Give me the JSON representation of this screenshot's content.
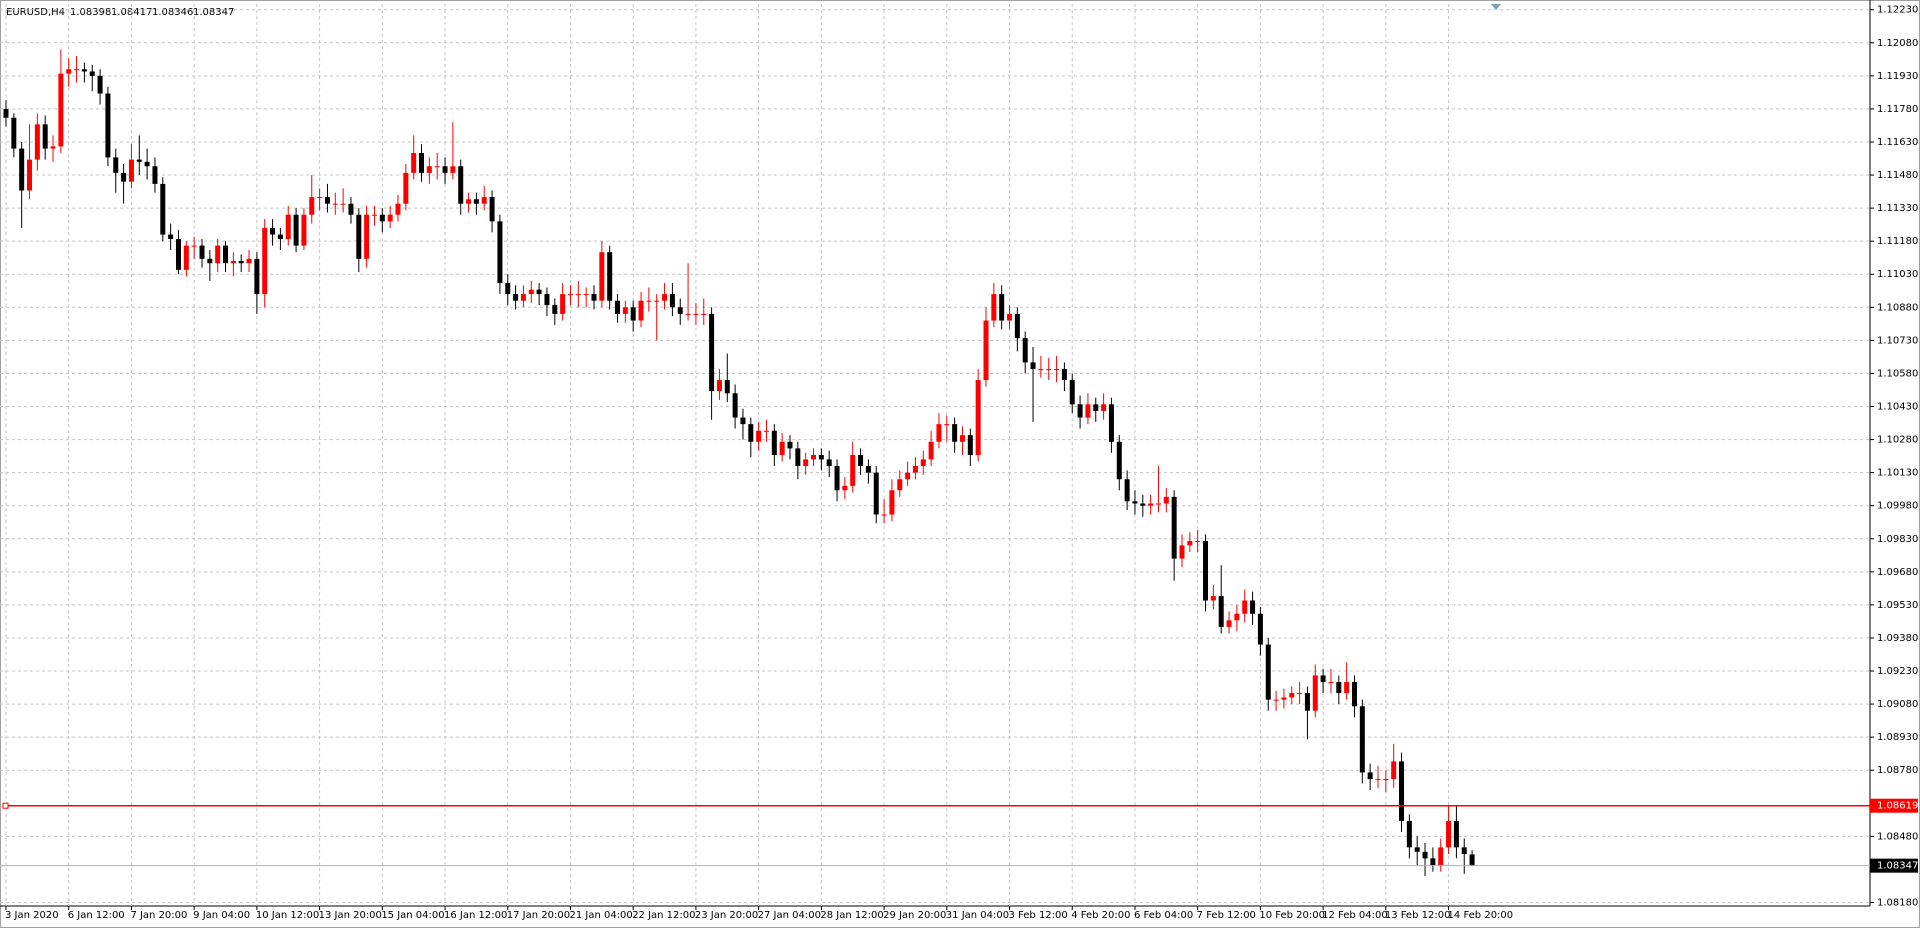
{
  "chart_data": {
    "type": "candlestick",
    "symbol": "EURUSD,H4",
    "bull_color": "#ff0000",
    "bear_color": "#000000",
    "grid": true,
    "ylim": [
      1.08164,
      1.12256
    ],
    "yticks": [
      {
        "value": 1.1223,
        "label": "1.12230"
      },
      {
        "value": 1.1208,
        "label": "1.12080"
      },
      {
        "value": 1.1193,
        "label": "1.11930"
      },
      {
        "value": 1.1178,
        "label": "1.11780"
      },
      {
        "value": 1.1163,
        "label": "1.11630"
      },
      {
        "value": 1.1148,
        "label": "1.11480"
      },
      {
        "value": 1.1133,
        "label": "1.11330"
      },
      {
        "value": 1.1118,
        "label": "1.11180"
      },
      {
        "value": 1.1103,
        "label": "1.11030"
      },
      {
        "value": 1.1088,
        "label": "1.10880"
      },
      {
        "value": 1.1073,
        "label": "1.10730"
      },
      {
        "value": 1.1058,
        "label": "1.10580"
      },
      {
        "value": 1.1043,
        "label": "1.10430"
      },
      {
        "value": 1.1028,
        "label": "1.10280"
      },
      {
        "value": 1.1013,
        "label": "1.10130"
      },
      {
        "value": 1.0998,
        "label": "1.09980"
      },
      {
        "value": 1.0983,
        "label": "1.09830"
      },
      {
        "value": 1.0968,
        "label": "1.09680"
      },
      {
        "value": 1.0953,
        "label": "1.09530"
      },
      {
        "value": 1.0938,
        "label": "1.09380"
      },
      {
        "value": 1.0923,
        "label": "1.09230"
      },
      {
        "value": 1.0908,
        "label": "1.09080"
      },
      {
        "value": 1.0893,
        "label": "1.08930"
      },
      {
        "value": 1.0878,
        "label": "1.08780"
      },
      {
        "value": 1.0848,
        "label": "1.08480"
      },
      {
        "value": 1.0818,
        "label": "1.08180"
      }
    ],
    "hline": {
      "value": 1.08619,
      "color": "#ff0000"
    },
    "categories": [
      "3 Jan 2020",
      null,
      null,
      null,
      null,
      null,
      null,
      null,
      "6 Jan 12:00",
      null,
      null,
      null,
      null,
      null,
      null,
      null,
      "7 Jan 20:00",
      null,
      null,
      null,
      null,
      null,
      null,
      null,
      "9 Jan 04:00",
      null,
      null,
      null,
      null,
      null,
      null,
      null,
      "10 Jan 12:00",
      null,
      null,
      null,
      null,
      null,
      null,
      null,
      "13 Jan 20:00",
      null,
      null,
      null,
      null,
      null,
      null,
      null,
      "15 Jan 04:00",
      null,
      null,
      null,
      null,
      null,
      null,
      null,
      "16 Jan 12:00",
      null,
      null,
      null,
      null,
      null,
      null,
      null,
      "17 Jan 20:00",
      null,
      null,
      null,
      null,
      null,
      null,
      null,
      "21 Jan 04:00",
      null,
      null,
      null,
      null,
      null,
      null,
      null,
      "22 Jan 12:00",
      null,
      null,
      null,
      null,
      null,
      null,
      null,
      "23 Jan 20:00",
      null,
      null,
      null,
      null,
      null,
      null,
      null,
      "27 Jan 04:00",
      null,
      null,
      null,
      null,
      null,
      null,
      null,
      "28 Jan 12:00",
      null,
      null,
      null,
      null,
      null,
      null,
      null,
      "29 Jan 20:00",
      null,
      null,
      null,
      null,
      null,
      null,
      null,
      "31 Jan 04:00",
      null,
      null,
      null,
      null,
      null,
      null,
      null,
      "3 Feb 12:00",
      null,
      null,
      null,
      null,
      null,
      null,
      null,
      "4 Feb 20:00",
      null,
      null,
      null,
      null,
      null,
      null,
      null,
      "6 Feb 04:00",
      null,
      null,
      null,
      null,
      null,
      null,
      null,
      "7 Feb 12:00",
      null,
      null,
      null,
      null,
      null,
      null,
      null,
      "10 Feb 20:00",
      null,
      null,
      null,
      null,
      null,
      null,
      null,
      "12 Feb 04:00",
      null,
      null,
      null,
      null,
      null,
      null,
      null,
      "13 Feb 12:00",
      null,
      null,
      null,
      null,
      null,
      null,
      null,
      "14 Feb 20:00",
      null,
      null,
      null
    ],
    "ohlc": [
      [
        1.1178,
        1.1182,
        1.117,
        1.1174
      ],
      [
        1.1174,
        1.1176,
        1.1156,
        1.116
      ],
      [
        1.116,
        1.1163,
        1.1124,
        1.1141
      ],
      [
        1.1141,
        1.1171,
        1.1137,
        1.1155
      ],
      [
        1.1155,
        1.1176,
        1.115,
        1.1171
      ],
      [
        1.1171,
        1.1175,
        1.1155,
        1.116
      ],
      [
        1.116,
        1.1166,
        1.1154,
        1.1161
      ],
      [
        1.1161,
        1.1205,
        1.1158,
        1.1194
      ],
      [
        1.1194,
        1.1201,
        1.1188,
        1.1196
      ],
      [
        1.1196,
        1.1202,
        1.119,
        1.1196
      ],
      [
        1.1196,
        1.1199,
        1.119,
        1.1195
      ],
      [
        1.1195,
        1.1198,
        1.1186,
        1.1193
      ],
      [
        1.1193,
        1.1196,
        1.118,
        1.1185
      ],
      [
        1.1185,
        1.1188,
        1.1152,
        1.1156
      ],
      [
        1.1156,
        1.116,
        1.114,
        1.1149
      ],
      [
        1.1149,
        1.1153,
        1.1135,
        1.1145
      ],
      [
        1.1145,
        1.1162,
        1.1142,
        1.1155
      ],
      [
        1.1155,
        1.1166,
        1.1148,
        1.1154
      ],
      [
        1.1154,
        1.116,
        1.1146,
        1.1152
      ],
      [
        1.1152,
        1.1156,
        1.114,
        1.1144
      ],
      [
        1.1144,
        1.1147,
        1.1118,
        1.1121
      ],
      [
        1.1121,
        1.1126,
        1.1114,
        1.1119
      ],
      [
        1.1119,
        1.1123,
        1.1103,
        1.1105
      ],
      [
        1.1105,
        1.1118,
        1.1102,
        1.1116
      ],
      [
        1.1116,
        1.112,
        1.111,
        1.1116
      ],
      [
        1.1116,
        1.1119,
        1.1106,
        1.111
      ],
      [
        1.111,
        1.1114,
        1.11,
        1.1108
      ],
      [
        1.1108,
        1.1119,
        1.1104,
        1.1116
      ],
      [
        1.1116,
        1.1118,
        1.1104,
        1.1108
      ],
      [
        1.1108,
        1.1113,
        1.1102,
        1.1109
      ],
      [
        1.1109,
        1.1112,
        1.1104,
        1.1108
      ],
      [
        1.1108,
        1.1114,
        1.1104,
        1.111
      ],
      [
        1.111,
        1.1113,
        1.1085,
        1.1094
      ],
      [
        1.1094,
        1.1128,
        1.1088,
        1.1124
      ],
      [
        1.1124,
        1.1128,
        1.1116,
        1.1121
      ],
      [
        1.1121,
        1.1124,
        1.1114,
        1.1119
      ],
      [
        1.1119,
        1.1134,
        1.1116,
        1.113
      ],
      [
        1.113,
        1.1133,
        1.1113,
        1.1116
      ],
      [
        1.1116,
        1.1133,
        1.1114,
        1.113
      ],
      [
        1.113,
        1.1148,
        1.1126,
        1.1138
      ],
      [
        1.1138,
        1.1142,
        1.1132,
        1.1138
      ],
      [
        1.1138,
        1.1144,
        1.1131,
        1.1135
      ],
      [
        1.1135,
        1.114,
        1.113,
        1.1135
      ],
      [
        1.1135,
        1.1142,
        1.1131,
        1.1135
      ],
      [
        1.1135,
        1.1138,
        1.1126,
        1.113
      ],
      [
        1.113,
        1.1133,
        1.1104,
        1.111
      ],
      [
        1.111,
        1.1134,
        1.1106,
        1.113
      ],
      [
        1.113,
        1.1134,
        1.1125,
        1.113
      ],
      [
        1.113,
        1.1133,
        1.1122,
        1.1127
      ],
      [
        1.1127,
        1.1134,
        1.1124,
        1.113
      ],
      [
        1.113,
        1.1139,
        1.1127,
        1.1135
      ],
      [
        1.1135,
        1.1153,
        1.1132,
        1.1149
      ],
      [
        1.1149,
        1.1166,
        1.1146,
        1.1158
      ],
      [
        1.1158,
        1.1162,
        1.1145,
        1.1149
      ],
      [
        1.1149,
        1.1156,
        1.1144,
        1.1152
      ],
      [
        1.1152,
        1.1158,
        1.1146,
        1.1152
      ],
      [
        1.1152,
        1.1156,
        1.1144,
        1.1149
      ],
      [
        1.1149,
        1.1172,
        1.1146,
        1.1152
      ],
      [
        1.1152,
        1.1155,
        1.113,
        1.1135
      ],
      [
        1.1135,
        1.114,
        1.1131,
        1.1137
      ],
      [
        1.1137,
        1.114,
        1.113,
        1.1135
      ],
      [
        1.1135,
        1.1143,
        1.1132,
        1.1138
      ],
      [
        1.1138,
        1.1141,
        1.1122,
        1.1127
      ],
      [
        1.1127,
        1.113,
        1.1094,
        1.1099
      ],
      [
        1.1099,
        1.1103,
        1.1089,
        1.1094
      ],
      [
        1.1094,
        1.1098,
        1.1087,
        1.1091
      ],
      [
        1.1091,
        1.1098,
        1.1088,
        1.1094
      ],
      [
        1.1094,
        1.11,
        1.109,
        1.1096
      ],
      [
        1.1096,
        1.1099,
        1.1089,
        1.1094
      ],
      [
        1.1094,
        1.1097,
        1.1084,
        1.1089
      ],
      [
        1.1089,
        1.1092,
        1.108,
        1.1085
      ],
      [
        1.1085,
        1.1099,
        1.1082,
        1.1094
      ],
      [
        1.1094,
        1.1098,
        1.1089,
        1.1094
      ],
      [
        1.1094,
        1.11,
        1.1088,
        1.1094
      ],
      [
        1.1094,
        1.1097,
        1.1088,
        1.1094
      ],
      [
        1.1094,
        1.1098,
        1.1087,
        1.1091
      ],
      [
        1.1091,
        1.1118,
        1.1088,
        1.1113
      ],
      [
        1.1113,
        1.1116,
        1.1087,
        1.1091
      ],
      [
        1.1091,
        1.1094,
        1.1081,
        1.1085
      ],
      [
        1.1085,
        1.1091,
        1.1081,
        1.1088
      ],
      [
        1.1088,
        1.1091,
        1.1077,
        1.1082
      ],
      [
        1.1082,
        1.1095,
        1.1079,
        1.1091
      ],
      [
        1.1091,
        1.1097,
        1.1086,
        1.1091
      ],
      [
        1.1091,
        1.1094,
        1.1073,
        1.1091
      ],
      [
        1.1091,
        1.1099,
        1.1087,
        1.1094
      ],
      [
        1.1094,
        1.1099,
        1.1084,
        1.1088
      ],
      [
        1.1088,
        1.1092,
        1.108,
        1.1085
      ],
      [
        1.1085,
        1.1108,
        1.1082,
        1.1085
      ],
      [
        1.1085,
        1.109,
        1.108,
        1.1085
      ],
      [
        1.1085,
        1.1092,
        1.108,
        1.1085
      ],
      [
        1.1085,
        1.1088,
        1.1037,
        1.105
      ],
      [
        1.105,
        1.106,
        1.1046,
        1.1055
      ],
      [
        1.1055,
        1.1067,
        1.1045,
        1.1049
      ],
      [
        1.1049,
        1.1053,
        1.1033,
        1.1038
      ],
      [
        1.1038,
        1.1042,
        1.1028,
        1.1035
      ],
      [
        1.1035,
        1.1038,
        1.102,
        1.1027
      ],
      [
        1.1027,
        1.1036,
        1.1023,
        1.1032
      ],
      [
        1.1032,
        1.1037,
        1.1027,
        1.1032
      ],
      [
        1.1032,
        1.1035,
        1.1016,
        1.1021
      ],
      [
        1.1021,
        1.1031,
        1.1018,
        1.1027
      ],
      [
        1.1027,
        1.103,
        1.1019,
        1.1024
      ],
      [
        1.1024,
        1.1027,
        1.101,
        1.1016
      ],
      [
        1.1016,
        1.1022,
        1.1012,
        1.1019
      ],
      [
        1.1019,
        1.1024,
        1.1016,
        1.1021
      ],
      [
        1.1021,
        1.1024,
        1.1014,
        1.1019
      ],
      [
        1.1019,
        1.1023,
        1.1011,
        1.1016
      ],
      [
        1.1016,
        1.1019,
        1.1,
        1.1005
      ],
      [
        1.1005,
        1.1011,
        1.1001,
        1.1007
      ],
      [
        1.1007,
        1.1027,
        1.1004,
        1.1021
      ],
      [
        1.1021,
        1.1024,
        1.1012,
        1.1016
      ],
      [
        1.1016,
        1.1019,
        1.1008,
        1.1013
      ],
      [
        1.1013,
        1.1016,
        1.099,
        1.0994
      ],
      [
        1.0994,
        1.1001,
        1.099,
        1.0994
      ],
      [
        1.0994,
        1.101,
        1.0991,
        1.1005
      ],
      [
        1.1005,
        1.1014,
        1.1002,
        1.101
      ],
      [
        1.101,
        1.1018,
        1.1007,
        1.1013
      ],
      [
        1.1013,
        1.102,
        1.101,
        1.1016
      ],
      [
        1.1016,
        1.1023,
        1.1012,
        1.1019
      ],
      [
        1.1019,
        1.1032,
        1.1016,
        1.1027
      ],
      [
        1.1027,
        1.104,
        1.1024,
        1.1035
      ],
      [
        1.1035,
        1.1039,
        1.1027,
        1.1035
      ],
      [
        1.1035,
        1.1038,
        1.1022,
        1.1027
      ],
      [
        1.1027,
        1.1034,
        1.1021,
        1.103
      ],
      [
        1.103,
        1.1033,
        1.1016,
        1.1021
      ],
      [
        1.1021,
        1.106,
        1.1018,
        1.1055
      ],
      [
        1.1055,
        1.1088,
        1.1052,
        1.1082
      ],
      [
        1.1082,
        1.1099,
        1.1079,
        1.1094
      ],
      [
        1.1094,
        1.1098,
        1.1078,
        1.1082
      ],
      [
        1.1082,
        1.1089,
        1.1078,
        1.1085
      ],
      [
        1.1085,
        1.1088,
        1.1068,
        1.1074
      ],
      [
        1.1074,
        1.1077,
        1.1058,
        1.1063
      ],
      [
        1.1063,
        1.107,
        1.1036,
        1.106
      ],
      [
        1.106,
        1.1066,
        1.1056,
        1.106
      ],
      [
        1.106,
        1.1065,
        1.1055,
        1.106
      ],
      [
        1.106,
        1.1066,
        1.1054,
        1.106
      ],
      [
        1.106,
        1.1063,
        1.105,
        1.1055
      ],
      [
        1.1055,
        1.1058,
        1.104,
        1.1044
      ],
      [
        1.1044,
        1.1048,
        1.1033,
        1.1038
      ],
      [
        1.1038,
        1.1049,
        1.1035,
        1.1044
      ],
      [
        1.1044,
        1.1047,
        1.1036,
        1.1041
      ],
      [
        1.1041,
        1.1049,
        1.1037,
        1.1044
      ],
      [
        1.1044,
        1.1047,
        1.1022,
        1.1027
      ],
      [
        1.1027,
        1.103,
        1.1005,
        1.101
      ],
      [
        1.101,
        1.1014,
        1.0996,
        1.1
      ],
      [
        1.1,
        1.1005,
        1.0994,
        1.0999
      ],
      [
        1.0999,
        1.1003,
        1.0993,
        1.0998
      ],
      [
        1.0998,
        1.1003,
        1.0994,
        1.0999
      ],
      [
        1.0999,
        1.1016,
        1.0995,
        1.0999
      ],
      [
        1.0999,
        1.1006,
        1.0995,
        1.1002
      ],
      [
        1.1002,
        1.1005,
        1.0964,
        1.0974
      ],
      [
        1.0974,
        1.0985,
        1.097,
        1.098
      ],
      [
        1.098,
        1.0986,
        1.0977,
        1.0982
      ],
      [
        1.0982,
        1.0987,
        1.0977,
        1.0982
      ],
      [
        1.0982,
        1.0985,
        1.095,
        1.0955
      ],
      [
        1.0955,
        1.0962,
        1.0951,
        1.0957
      ],
      [
        1.0957,
        1.0971,
        1.094,
        1.0943
      ],
      [
        1.0943,
        1.095,
        1.094,
        1.0946
      ],
      [
        1.0946,
        1.0953,
        1.0941,
        1.0949
      ],
      [
        1.0949,
        1.096,
        1.0945,
        1.0955
      ],
      [
        1.0955,
        1.0959,
        1.0944,
        1.0949
      ],
      [
        1.0949,
        1.0952,
        1.093,
        1.0935
      ],
      [
        1.0935,
        1.0938,
        1.0905,
        1.091
      ],
      [
        1.091,
        1.0914,
        1.0905,
        1.091
      ],
      [
        1.091,
        1.0915,
        1.0906,
        1.0911
      ],
      [
        1.0911,
        1.0916,
        1.0908,
        1.0913
      ],
      [
        1.0913,
        1.0918,
        1.0908,
        1.0913
      ],
      [
        1.0913,
        1.0916,
        1.0892,
        1.0905
      ],
      [
        1.0905,
        1.0926,
        1.0902,
        1.0921
      ],
      [
        1.0921,
        1.0924,
        1.0913,
        1.0918
      ],
      [
        1.0918,
        1.0924,
        1.0913,
        1.0918
      ],
      [
        1.0918,
        1.0921,
        1.0908,
        1.0913
      ],
      [
        1.0913,
        1.0927,
        1.091,
        1.0918
      ],
      [
        1.0918,
        1.0921,
        1.0902,
        1.0907
      ],
      [
        1.0907,
        1.091,
        1.0872,
        1.0877
      ],
      [
        1.0877,
        1.0881,
        1.0869,
        1.0874
      ],
      [
        1.0874,
        1.088,
        1.087,
        1.0874
      ],
      [
        1.0874,
        1.0878,
        1.0868,
        1.0874
      ],
      [
        1.0874,
        1.089,
        1.087,
        1.0882
      ],
      [
        1.0882,
        1.0886,
        1.085,
        1.0855
      ],
      [
        1.0855,
        1.0858,
        1.0838,
        1.0843
      ],
      [
        1.0843,
        1.0848,
        1.0835,
        1.0841
      ],
      [
        1.0841,
        1.0845,
        1.083,
        1.0838
      ],
      [
        1.0838,
        1.0843,
        1.0832,
        1.0835
      ],
      [
        1.0835,
        1.0847,
        1.0832,
        1.0843
      ],
      [
        1.0843,
        1.0862,
        1.084,
        1.0855
      ],
      [
        1.0855,
        1.0862,
        1.0838,
        1.0843
      ],
      [
        1.0843,
        1.0847,
        1.0831,
        1.084
      ],
      [
        1.08398,
        1.08417,
        1.08346,
        1.08347
      ]
    ]
  }
}
